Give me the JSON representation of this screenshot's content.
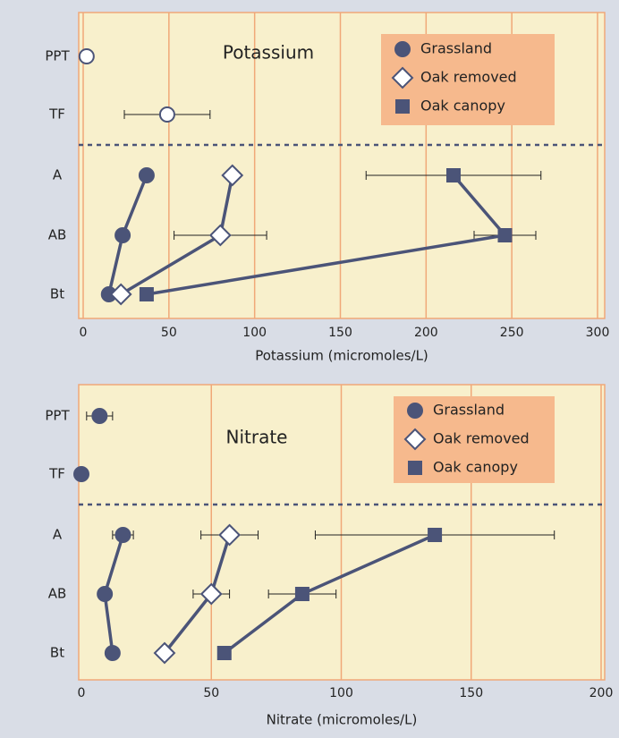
{
  "chart_data": [
    {
      "type": "dot",
      "title": "Potassium",
      "xlabel": "Potassium (micromoles/L)",
      "categories": [
        "PPT",
        "TF",
        "A",
        "AB",
        "Bt"
      ],
      "xlim": [
        0,
        300
      ],
      "xticks": [
        0,
        50,
        100,
        150,
        200,
        250,
        300
      ],
      "grid": true,
      "legend": "upper right",
      "series": [
        {
          "color": "#4b5478",
          "marker": "open-circle",
          "line": false,
          "values": [
            2,
            49,
            null,
            null,
            null
          ],
          "errors": [
            null,
            25,
            null,
            null,
            null
          ]
        },
        {
          "name": "Grassland",
          "color": "#4b5478",
          "marker": "circle",
          "line": true,
          "values": [
            null,
            null,
            37,
            23,
            15
          ],
          "errors": [
            null,
            null,
            null,
            null,
            null
          ]
        },
        {
          "name": "Oak removed",
          "color": "#4b5478",
          "marker": "open-diamond",
          "line": true,
          "values": [
            null,
            null,
            87,
            80,
            22
          ],
          "errors": [
            null,
            null,
            null,
            27,
            null
          ]
        },
        {
          "name": "Oak canopy",
          "color": "#4b5478",
          "marker": "square",
          "line": true,
          "values": [
            null,
            null,
            216,
            246,
            37
          ],
          "errors": [
            null,
            null,
            51,
            18,
            null
          ]
        }
      ]
    },
    {
      "type": "dot",
      "title": "Nitrate",
      "xlabel": "Nitrate (micromoles/L)",
      "categories": [
        "PPT",
        "TF",
        "A",
        "AB",
        "Bt"
      ],
      "xlim": [
        0,
        200
      ],
      "xticks": [
        0,
        50,
        100,
        150,
        200
      ],
      "grid": true,
      "legend": "upper right",
      "series": [
        {
          "color": "#4b5478",
          "marker": "circle",
          "line": false,
          "values": [
            7,
            0,
            null,
            null,
            null
          ],
          "errors": [
            5,
            null,
            null,
            null,
            null
          ]
        },
        {
          "name": "Grassland",
          "color": "#4b5478",
          "marker": "circle",
          "line": true,
          "values": [
            null,
            null,
            16,
            9,
            12
          ],
          "errors": [
            null,
            null,
            4,
            null,
            null
          ]
        },
        {
          "name": "Oak removed",
          "color": "#4b5478",
          "marker": "open-diamond",
          "line": true,
          "values": [
            null,
            null,
            57,
            50,
            32
          ],
          "errors": [
            null,
            null,
            11,
            7,
            null
          ]
        },
        {
          "name": "Oak canopy",
          "color": "#4b5478",
          "marker": "square",
          "line": true,
          "values": [
            null,
            null,
            136,
            85,
            55
          ],
          "errors": [
            null,
            null,
            46,
            13,
            null
          ]
        }
      ]
    }
  ]
}
